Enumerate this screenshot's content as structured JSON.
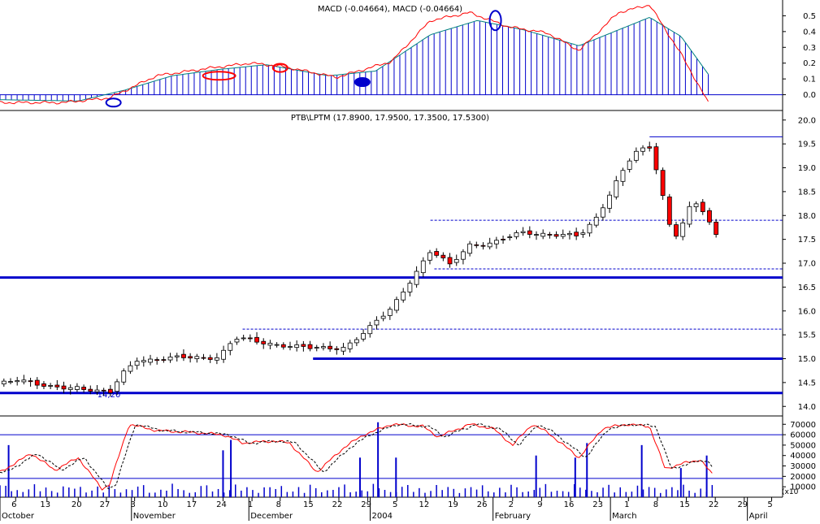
{
  "chart_data": [
    {
      "panel": "macd",
      "type": "line",
      "title": "MACD (-0.04664), MACD (-0.04664)",
      "ylim": [
        -0.1,
        0.6
      ],
      "y_ticks": [
        0.0,
        0.1,
        0.2,
        0.3,
        0.4,
        0.5
      ],
      "y_tick_labels": [
        "0.0",
        "0.1",
        "0.2",
        "0.3",
        "0.4",
        "0.5"
      ],
      "colors": {
        "fast": "#ff0000",
        "signal": "#008080",
        "histogram": "#0000cc",
        "zero_line": "#0000cc"
      },
      "anchors": {
        "fast": [
          [
            -0.02,
            -0.05
          ],
          [
            0.08,
            -0.05
          ],
          [
            0.14,
            -0.02
          ],
          [
            0.2,
            0.12
          ],
          [
            0.27,
            0.17
          ],
          [
            0.32,
            0.2
          ],
          [
            0.36,
            0.18
          ],
          [
            0.43,
            0.11
          ],
          [
            0.5,
            0.21
          ],
          [
            0.55,
            0.47
          ],
          [
            0.6,
            0.52
          ],
          [
            0.65,
            0.43
          ],
          [
            0.7,
            0.39
          ],
          [
            0.74,
            0.28
          ],
          [
            0.79,
            0.52
          ],
          [
            0.83,
            0.57
          ],
          [
            0.87,
            0.26
          ],
          [
            0.905,
            -0.05
          ]
        ],
        "signal": [
          [
            -0.02,
            -0.03
          ],
          [
            0.1,
            -0.04
          ],
          [
            0.16,
            0.03
          ],
          [
            0.22,
            0.12
          ],
          [
            0.28,
            0.16
          ],
          [
            0.34,
            0.19
          ],
          [
            0.42,
            0.12
          ],
          [
            0.48,
            0.15
          ],
          [
            0.55,
            0.38
          ],
          [
            0.61,
            0.47
          ],
          [
            0.67,
            0.41
          ],
          [
            0.74,
            0.31
          ],
          [
            0.8,
            0.43
          ],
          [
            0.83,
            0.49
          ],
          [
            0.87,
            0.37
          ],
          [
            0.905,
            0.13
          ]
        ]
      },
      "markers": [
        {
          "t": 0.145,
          "v": -0.05,
          "color": "#0000cc"
        },
        {
          "t": 0.28,
          "v": 0.12,
          "color": "#ff0000"
        },
        {
          "t": 0.358,
          "v": 0.17,
          "color": "#ff0000"
        },
        {
          "t": 0.463,
          "v": 0.08,
          "color": "#0000cc"
        },
        {
          "t": 0.633,
          "v": 0.47,
          "color": "#0000cc"
        }
      ]
    },
    {
      "panel": "price",
      "type": "candlestick",
      "title": "PTB\\LPTM (17.8900, 17.9500, 17.3500, 17.5300)",
      "ylim": [
        13.8,
        20.2
      ],
      "y_ticks": [
        14.0,
        14.5,
        15.0,
        15.5,
        16.0,
        16.5,
        17.0,
        17.5,
        18.0,
        18.5,
        19.0,
        19.5,
        20.0
      ],
      "y_tick_labels": [
        "14.0",
        "14.5",
        "15.0",
        "15.5",
        "16.0",
        "16.5",
        "17.0",
        "17.5",
        "18.0",
        "18.5",
        "19.0",
        "19.5",
        "20.0"
      ],
      "annotation": {
        "text": "14,20",
        "t": 0.14,
        "v": 14.2
      },
      "support_lines": [
        {
          "v": 14.28,
          "t0": 0.0,
          "t1": 1.0,
          "style": "solid"
        },
        {
          "v": 15.0,
          "t0": 0.4,
          "t1": 1.0,
          "style": "solid"
        },
        {
          "v": 16.7,
          "t0": 0.0,
          "t1": 1.0,
          "style": "solid"
        },
        {
          "v": 15.62,
          "t0": 0.31,
          "t1": 1.0,
          "style": "dotted"
        },
        {
          "v": 16.88,
          "t0": 0.555,
          "t1": 1.0,
          "style": "dotted"
        },
        {
          "v": 17.9,
          "t0": 0.55,
          "t1": 1.0,
          "style": "dotted"
        },
        {
          "v": 19.65,
          "t0": 0.83,
          "t1": 1.0,
          "style": "thin"
        }
      ],
      "colors": {
        "up": "#ffffff",
        "down": "#ff0000",
        "line": "#0000cc"
      },
      "anchors": [
        [
          0.0,
          14.5
        ],
        [
          0.02,
          14.6
        ],
        [
          0.06,
          14.38
        ],
        [
          0.1,
          14.42
        ],
        [
          0.14,
          14.25
        ],
        [
          0.155,
          14.65
        ],
        [
          0.175,
          15.0
        ],
        [
          0.2,
          14.98
        ],
        [
          0.24,
          15.02
        ],
        [
          0.28,
          15.05
        ],
        [
          0.3,
          15.42
        ],
        [
          0.33,
          15.35
        ],
        [
          0.36,
          15.3
        ],
        [
          0.4,
          15.2
        ],
        [
          0.44,
          15.25
        ],
        [
          0.47,
          15.6
        ],
        [
          0.5,
          16.05
        ],
        [
          0.52,
          16.55
        ],
        [
          0.55,
          17.25
        ],
        [
          0.575,
          16.95
        ],
        [
          0.6,
          17.4
        ],
        [
          0.63,
          17.42
        ],
        [
          0.67,
          17.65
        ],
        [
          0.7,
          17.62
        ],
        [
          0.74,
          17.55
        ],
        [
          0.76,
          17.9
        ],
        [
          0.79,
          18.8
        ],
        [
          0.81,
          19.3
        ],
        [
          0.83,
          19.4
        ],
        [
          0.84,
          18.9
        ],
        [
          0.86,
          17.5
        ],
        [
          0.87,
          17.8
        ],
        [
          0.885,
          18.3
        ],
        [
          0.9,
          18.05
        ],
        [
          0.915,
          17.55
        ]
      ]
    },
    {
      "panel": "stochastic",
      "type": "line",
      "ylim": [
        0,
        78000
      ],
      "y_ticks": [
        10000,
        20000,
        30000,
        40000,
        50000,
        60000,
        70000
      ],
      "y_tick_labels": [
        "10000",
        "20000",
        "30000",
        "40000",
        "50000",
        "60000",
        "70000"
      ],
      "y_unit_label": "(x10",
      "ref_lines": [
        60000,
        18000
      ],
      "colors": {
        "k": "#ff0000",
        "d": "#000000",
        "volume": "#0000cc"
      },
      "anchors": [
        [
          0.0,
          24000
        ],
        [
          0.04,
          42000
        ],
        [
          0.07,
          26000
        ],
        [
          0.1,
          38000
        ],
        [
          0.13,
          8000
        ],
        [
          0.14,
          12000
        ],
        [
          0.165,
          70000
        ],
        [
          0.2,
          64000
        ],
        [
          0.25,
          62000
        ],
        [
          0.285,
          60000
        ],
        [
          0.31,
          52000
        ],
        [
          0.35,
          54000
        ],
        [
          0.37,
          52000
        ],
        [
          0.405,
          24000
        ],
        [
          0.44,
          48000
        ],
        [
          0.465,
          60000
        ],
        [
          0.5,
          70000
        ],
        [
          0.54,
          68000
        ],
        [
          0.56,
          58000
        ],
        [
          0.6,
          70000
        ],
        [
          0.63,
          66000
        ],
        [
          0.655,
          50000
        ],
        [
          0.68,
          70000
        ],
        [
          0.7,
          62000
        ],
        [
          0.74,
          38000
        ],
        [
          0.77,
          66000
        ],
        [
          0.8,
          70000
        ],
        [
          0.83,
          68000
        ],
        [
          0.85,
          27000
        ],
        [
          0.87,
          32000
        ],
        [
          0.895,
          36000
        ],
        [
          0.91,
          22000
        ]
      ],
      "volume_spikes": [
        [
          0.011,
          50000
        ],
        [
          0.285,
          45000
        ],
        [
          0.295,
          55000
        ],
        [
          0.46,
          38000
        ],
        [
          0.483,
          72000
        ],
        [
          0.506,
          38000
        ],
        [
          0.685,
          40000
        ],
        [
          0.735,
          38000
        ],
        [
          0.75,
          52000
        ],
        [
          0.82,
          50000
        ],
        [
          0.87,
          28000
        ],
        [
          0.903,
          40000
        ]
      ]
    }
  ],
  "x_axis": {
    "labels": [
      "6",
      "13",
      "20",
      "27",
      "3",
      "10",
      "17",
      "24",
      "1",
      "8",
      "15",
      "22",
      "29",
      "5",
      "12",
      "19",
      "26",
      "2",
      "9",
      "16",
      "23",
      "1",
      "8",
      "15",
      "22",
      "29",
      "5"
    ],
    "label_positions": [
      0.02,
      0.06,
      0.1,
      0.136,
      0.172,
      0.21,
      0.247,
      0.285,
      0.322,
      0.358,
      0.396,
      0.433,
      0.47,
      0.507,
      0.544,
      0.581,
      0.618,
      0.655,
      0.692,
      0.729,
      0.766,
      0.803,
      0.84,
      0.877,
      0.914,
      0.951,
      0.986
    ],
    "months": [
      {
        "label": "October",
        "t": 0.0
      },
      {
        "label": "November",
        "t": 0.168
      },
      {
        "label": "December",
        "t": 0.318
      },
      {
        "label": "2004",
        "t": 0.473
      },
      {
        "label": "February",
        "t": 0.63
      },
      {
        "label": "March",
        "t": 0.78
      },
      {
        "label": "April",
        "t": 0.955
      }
    ]
  }
}
